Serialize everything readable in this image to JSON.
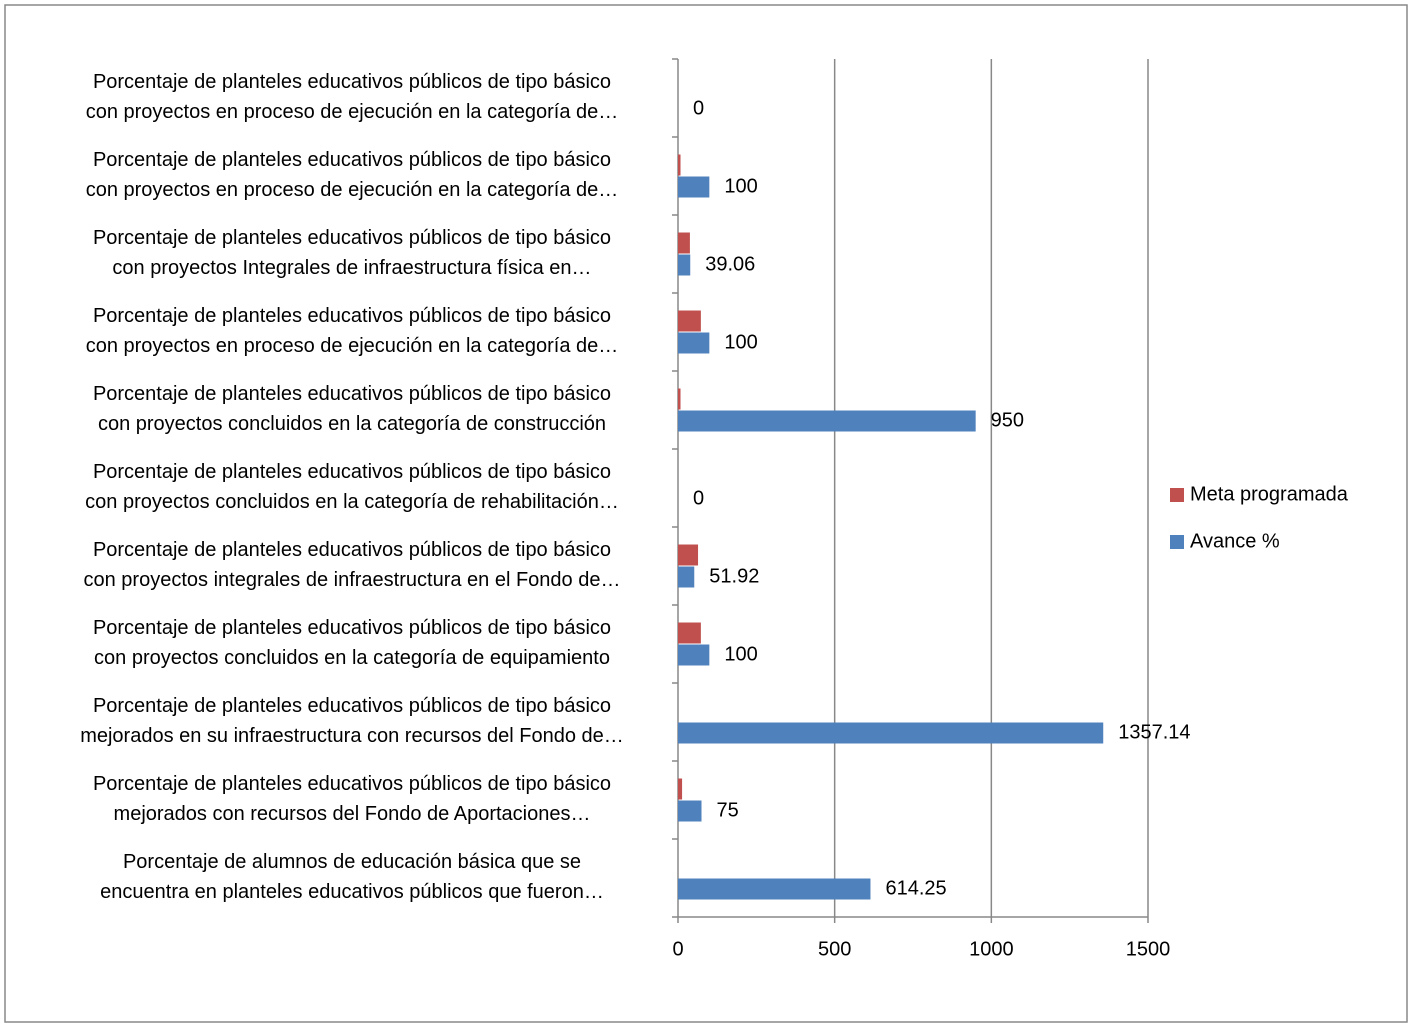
{
  "chart_data": {
    "type": "bar",
    "orientation": "horizontal",
    "categories": [
      "Porcentaje de planteles educativos públicos de tipo básico\ncon proyectos en proceso de ejecución en la categoría de…",
      "Porcentaje de planteles educativos públicos de tipo básico\ncon proyectos en proceso de ejecución en la categoría de…",
      "Porcentaje de planteles educativos públicos de tipo básico\ncon proyectos Integrales de infraestructura física en…",
      "Porcentaje de planteles educativos públicos de tipo básico\ncon proyectos en proceso de ejecución en la categoría de…",
      "Porcentaje de planteles educativos públicos de tipo básico\ncon proyectos concluidos en la categoría de construcción",
      "Porcentaje de planteles educativos públicos de tipo básico\ncon proyectos concluidos en la categoría de rehabilitación…",
      "Porcentaje de planteles educativos públicos de tipo básico\ncon proyectos integrales de infraestructura en el  Fondo de…",
      "Porcentaje de planteles educativos públicos  de tipo básico\ncon proyectos concluidos en la categoría de equipamiento",
      "Porcentaje de planteles educativos públicos de tipo básico\nmejorados en su infraestructura con recursos del Fondo de…",
      "Porcentaje de planteles educativos públicos de tipo básico\nmejorados con recursos del Fondo de Aportaciones…",
      "Porcentaje de alumnos de educación básica que se\nencuentra en planteles educativos públicos que  fueron…"
    ],
    "series": [
      {
        "name": "Meta programada",
        "color": "#c0504d",
        "values": [
          0,
          8,
          38,
          73,
          8,
          0,
          64,
          73,
          0,
          13,
          0
        ]
      },
      {
        "name": "Avance %",
        "color": "#4f81bd",
        "values": [
          0,
          100,
          39.06,
          100,
          950,
          0,
          51.92,
          100,
          1357.14,
          75,
          614.25
        ]
      }
    ],
    "xlim": [
      0,
      1500
    ],
    "xticks": [
      0,
      500,
      1000,
      1500
    ],
    "grid": true,
    "legend": "right"
  }
}
